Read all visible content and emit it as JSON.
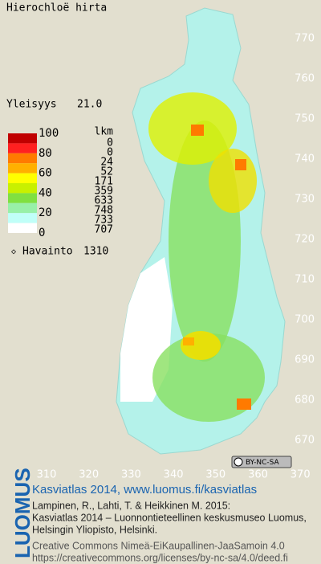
{
  "title": "Hierochloë hirta",
  "frequency": {
    "label": "Yleisyys",
    "value": "21.0"
  },
  "legend": {
    "scale_labels": [
      100,
      80,
      60,
      40,
      20,
      0
    ],
    "colors": [
      "#c00000",
      "#ff2020",
      "#ff7a00",
      "#ffb000",
      "#ffff00",
      "#c8f000",
      "#80e040",
      "#98f0a8",
      "#c0fff8",
      "#ffffff"
    ],
    "count_header": "lkm",
    "counts": [
      0,
      0,
      24,
      52,
      171,
      359,
      633,
      748,
      733,
      707
    ]
  },
  "observation": {
    "label": "Havainto",
    "value": 1310
  },
  "grid": {
    "y_labels": [
      770,
      760,
      750,
      740,
      730,
      720,
      710,
      700,
      690,
      680,
      670
    ],
    "x_labels": [
      310,
      320,
      330,
      340,
      350,
      360,
      370
    ]
  },
  "license_badge": "BY-NC-SA",
  "footer": {
    "brand": "LUOMUS",
    "headline": "Kasviatlas 2014, www.luomus.fi/kasviatlas",
    "citation": [
      "Lampinen, R., Lahti, T. & Heikkinen M. 2015:",
      "Kasviatlas 2014 – Luonnontieteellinen keskusmuseo Luomus,",
      "Helsingin Yliopisto, Helsinki."
    ],
    "license": [
      "Creative Commons Nimeä-EiKaupallinen-JaaSamoin 4.0",
      "https://creativecommons.org/licenses/by-nc-sa/4.0/deed.fi"
    ]
  }
}
